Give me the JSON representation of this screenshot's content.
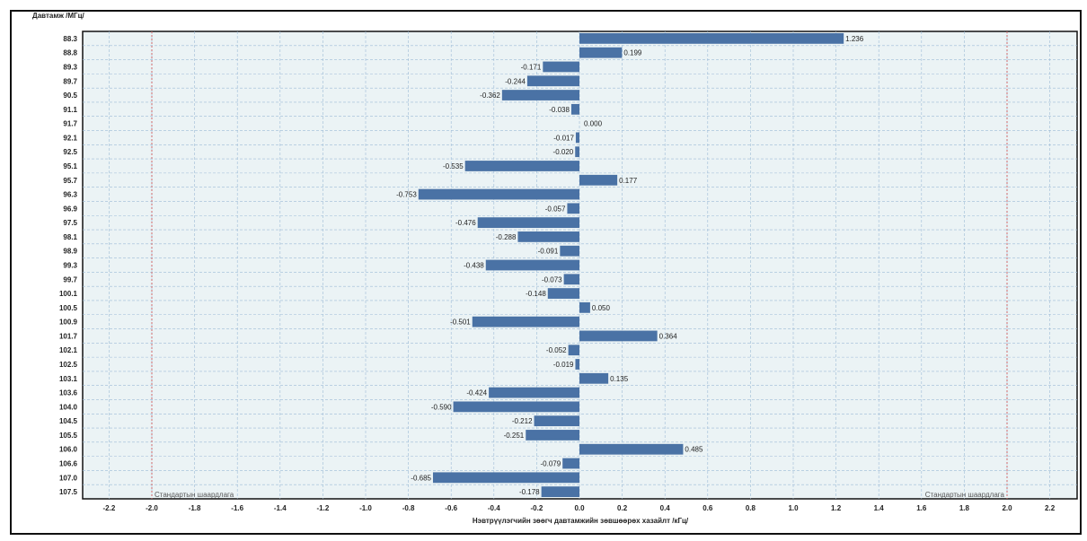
{
  "chart_data": {
    "type": "bar",
    "orientation": "horizontal",
    "ylabel": "Давтамж /МГц/",
    "xlabel": "Нэвтрүүлэгчийн зөөгч давтамжийн зөвшөөрөх хазайлт /кГц/",
    "categories": [
      "88.3",
      "88.8",
      "89.3",
      "89.7",
      "90.5",
      "91.1",
      "91.7",
      "92.1",
      "92.5",
      "95.1",
      "95.7",
      "96.3",
      "96.9",
      "97.5",
      "98.1",
      "98.9",
      "99.3",
      "99.7",
      "100.1",
      "100.5",
      "100.9",
      "101.7",
      "102.1",
      "102.5",
      "103.1",
      "103.6",
      "104.0",
      "104.5",
      "105.5",
      "106.0",
      "106.6",
      "107.0",
      "107.5"
    ],
    "values": [
      1.236,
      0.199,
      -0.171,
      -0.244,
      -0.362,
      -0.038,
      0.0,
      -0.017,
      -0.02,
      -0.535,
      0.177,
      -0.753,
      -0.057,
      -0.476,
      -0.288,
      -0.091,
      -0.438,
      -0.073,
      -0.148,
      0.05,
      -0.501,
      0.364,
      -0.052,
      -0.019,
      0.135,
      -0.424,
      -0.59,
      -0.212,
      -0.251,
      0.485,
      -0.079,
      -0.685,
      -0.178
    ],
    "value_labels": [
      "1.236",
      "0.199",
      "-0.171",
      "-0.244",
      "-0.362",
      "-0.038",
      "0.000",
      "-0.017",
      "-0.020",
      "-0.535",
      "0.177",
      "-0.753",
      "-0.057",
      "-0.476",
      "-0.288",
      "-0.091",
      "-0.438",
      "-0.073",
      "-0.148",
      "0.050",
      "-0.501",
      "0.364",
      "-0.052",
      "-0.019",
      "0.135",
      "-0.424",
      "-0.590",
      "-0.212",
      "-0.251",
      "0.485",
      "-0.079",
      "-0.685",
      "-0.178"
    ],
    "xlim": [
      -2.3,
      2.3
    ],
    "xticks": [
      -2.2,
      -2.0,
      -1.8,
      -1.6,
      -1.4,
      -1.2,
      -1.0,
      -0.8,
      -0.6,
      -0.4,
      -0.2,
      0.0,
      0.2,
      0.4,
      0.6,
      0.8,
      1.0,
      1.2,
      1.4,
      1.6,
      1.8,
      2.0,
      2.2
    ],
    "xtick_labels": [
      "-2.2",
      "-2.0",
      "-1.8",
      "-1.6",
      "-1.4",
      "-1.2",
      "-1.0",
      "-0.8",
      "-0.6",
      "-0.4",
      "-0.2",
      "0.0",
      "0.2",
      "0.4",
      "0.6",
      "0.8",
      "1.0",
      "1.2",
      "1.4",
      "1.6",
      "1.8",
      "2.0",
      "2.2"
    ],
    "reference_lines": [
      {
        "value": -2.0,
        "label": "Стандартын шаардлага"
      },
      {
        "value": 2.0,
        "label": "Стандартын шаардлага"
      }
    ],
    "grid": true,
    "legend": "none",
    "colors": {
      "bar": "#4a72a5",
      "plot_background": "#ebf3f5",
      "grid": "#9dbbd6",
      "reference_line": "#d06a6a",
      "frame_border": "#111111"
    }
  }
}
